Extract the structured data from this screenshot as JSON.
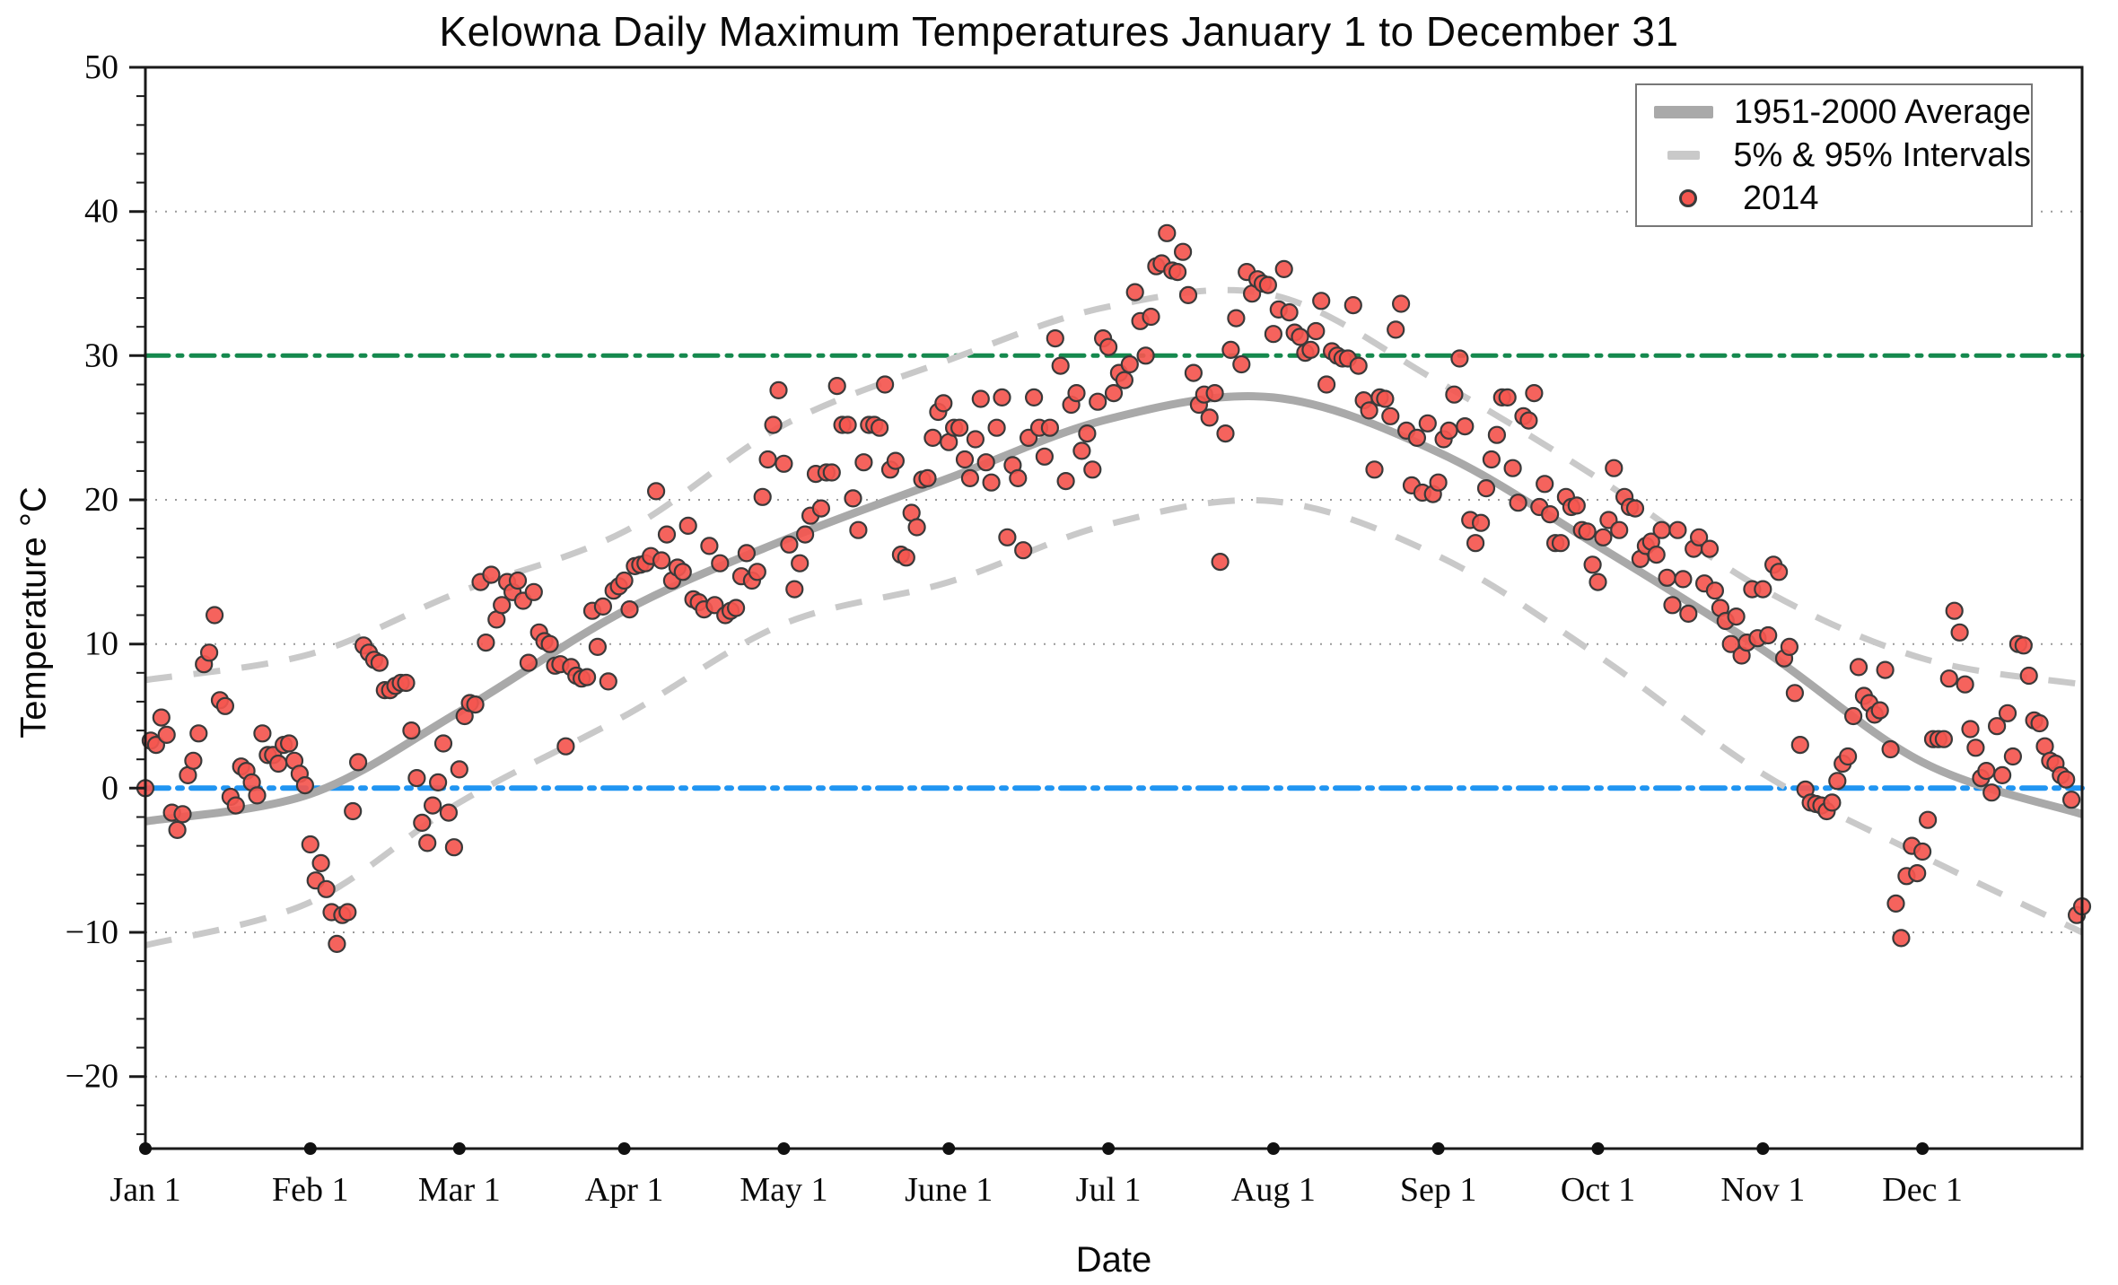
{
  "title": "Kelowna Daily Maximum Temperatures January 1 to December 31",
  "axes": {
    "xlabel": "Date",
    "ylabel": "Temperature °C",
    "ylim": [
      -25,
      50
    ],
    "yticks": [
      {
        "value": 50,
        "label": "50"
      },
      {
        "value": 40,
        "label": "40"
      },
      {
        "value": 30,
        "label": "30"
      },
      {
        "value": 20,
        "label": "20"
      },
      {
        "value": 10,
        "label": "10"
      },
      {
        "value": 0,
        "label": "0"
      },
      {
        "value": -10,
        "label": "−10"
      },
      {
        "value": -20,
        "label": "−20"
      }
    ],
    "minor_tick_step": 2,
    "xticks": [
      {
        "day": 0,
        "label": "Jan 1"
      },
      {
        "day": 31,
        "label": "Feb 1"
      },
      {
        "day": 59,
        "label": "Mar 1"
      },
      {
        "day": 90,
        "label": "Apr 1"
      },
      {
        "day": 120,
        "label": "May 1"
      },
      {
        "day": 151,
        "label": "June 1"
      },
      {
        "day": 181,
        "label": "Jul 1"
      },
      {
        "day": 212,
        "label": "Aug 1"
      },
      {
        "day": 243,
        "label": "Sep 1"
      },
      {
        "day": 273,
        "label": "Oct 1"
      },
      {
        "day": 304,
        "label": "Nov 1"
      },
      {
        "day": 334,
        "label": "Dec 1"
      }
    ],
    "grid_y": [
      40,
      20,
      10,
      -10,
      -20
    ]
  },
  "legend": {
    "items": [
      {
        "label": "1951-2000 Average",
        "swatch": "thick-gray-line"
      },
      {
        "label": "5% & 95% Intervals",
        "swatch": "gray-dash"
      },
      {
        "label": "2014",
        "swatch": "red-dot"
      }
    ]
  },
  "reference_lines": [
    {
      "name": "30-degree-threshold",
      "value": 30,
      "color": "#15894e",
      "style": "dash-dot"
    },
    {
      "name": "freezing-level",
      "value": 0,
      "color": "#2095f2",
      "style": "dash-dot"
    }
  ],
  "colors": {
    "scatter_fill": "#f4564f",
    "scatter_stroke": "#3a3a3a",
    "average_line": "#a9a9a9",
    "interval_line": "#c9c9c9",
    "grid": "#9a9a9a",
    "axis": "#1a1a1a",
    "green_line": "#15894e",
    "blue_line": "#2095f2"
  },
  "chart_data": {
    "type": "scatter",
    "title": "Kelowna Daily Maximum Temperatures January 1 to December 31",
    "xlabel": "Date",
    "ylabel": "Temperature °C",
    "x_unit": "day-of-year (Jan 1 = 0)",
    "ylim": [
      -25,
      50
    ],
    "month_start_days": [
      0,
      31,
      59,
      90,
      120,
      151,
      181,
      212,
      243,
      273,
      304,
      334
    ],
    "series": [
      {
        "name": "2014",
        "type": "scatter",
        "start_day": 0,
        "values": [
          0.0,
          3.3,
          3.0,
          4.9,
          3.7,
          -1.7,
          -2.9,
          -1.8,
          0.9,
          1.9,
          3.8,
          8.6,
          9.4,
          12.0,
          6.1,
          5.7,
          -0.6,
          -1.2,
          1.5,
          1.2,
          0.4,
          -0.5,
          3.8,
          2.3,
          2.3,
          1.7,
          3.0,
          3.1,
          1.9,
          1.0,
          0.2,
          -3.9,
          -6.4,
          -5.2,
          -7.0,
          -8.6,
          -10.8,
          -8.8,
          -8.6,
          -1.6,
          1.8,
          9.9,
          9.4,
          8.9,
          8.7,
          6.8,
          6.8,
          7.1,
          7.3,
          7.3,
          4.0,
          0.7,
          -2.4,
          -3.8,
          -1.2,
          0.4,
          3.1,
          -1.7,
          -4.1,
          1.3,
          5.0,
          5.9,
          5.8,
          14.3,
          10.1,
          14.8,
          11.7,
          12.7,
          14.3,
          13.6,
          14.4,
          13.0,
          8.7,
          13.6,
          10.8,
          10.2,
          10.0,
          8.5,
          8.6,
          2.9,
          8.4,
          7.8,
          7.6,
          7.7,
          12.3,
          9.8,
          12.6,
          7.4,
          13.7,
          14.0,
          14.4,
          12.4,
          15.4,
          15.5,
          15.6,
          16.1,
          20.6,
          15.8,
          17.6,
          14.4,
          15.3,
          15.0,
          18.2,
          13.1,
          12.9,
          12.4,
          16.8,
          12.7,
          15.6,
          12.0,
          12.3,
          12.5,
          14.7,
          16.3,
          14.4,
          15.0,
          20.2,
          22.8,
          25.2,
          27.6,
          22.5,
          16.9,
          13.8,
          15.6,
          17.6,
          18.9,
          21.8,
          19.4,
          21.9,
          21.9,
          27.9,
          25.2,
          25.2,
          20.1,
          17.9,
          22.6,
          25.2,
          25.2,
          25.0,
          28.0,
          22.1,
          22.7,
          16.2,
          16.0,
          19.1,
          18.1,
          21.4,
          21.5,
          24.3,
          26.1,
          26.7,
          24.0,
          25.0,
          25.0,
          22.8,
          21.5,
          24.2,
          27.0,
          22.6,
          21.2,
          25.0,
          27.1,
          17.4,
          22.4,
          21.5,
          16.5,
          24.3,
          27.1,
          25.0,
          23.0,
          25.0,
          31.2,
          29.3,
          21.3,
          26.6,
          27.4,
          23.4,
          24.6,
          22.1,
          26.8,
          31.2,
          30.6,
          27.4,
          28.8,
          28.3,
          29.4,
          34.4,
          32.4,
          30.0,
          32.7,
          36.2,
          36.4,
          38.5,
          35.9,
          35.8,
          37.2,
          34.2,
          28.8,
          26.6,
          27.3,
          25.7,
          27.4,
          15.7,
          24.6,
          30.4,
          32.6,
          29.4,
          35.8,
          34.3,
          35.3,
          35.0,
          34.9,
          31.5,
          33.2,
          36.0,
          33.0,
          31.6,
          31.3,
          30.2,
          30.4,
          31.7,
          33.8,
          28.0,
          30.3,
          30.0,
          29.8,
          29.8,
          33.5,
          29.3,
          26.9,
          26.2,
          22.1,
          27.1,
          27.0,
          25.8,
          31.8,
          33.6,
          24.8,
          21.0,
          24.3,
          20.5,
          25.3,
          20.4,
          21.2,
          24.2,
          24.8,
          27.3,
          29.8,
          25.1,
          18.6,
          17.0,
          18.4,
          20.8,
          22.8,
          24.5,
          27.1,
          27.1,
          22.2,
          19.8,
          25.8,
          25.5,
          27.4,
          19.5,
          21.1,
          19.0,
          17.0,
          17.0,
          20.2,
          19.5,
          19.6,
          17.9,
          17.8,
          15.5,
          14.3,
          17.4,
          18.6,
          22.2,
          17.9,
          20.2,
          19.5,
          19.4,
          15.9,
          16.8,
          17.1,
          16.2,
          17.9,
          14.6,
          12.7,
          17.9,
          14.5,
          12.1,
          16.6,
          17.4,
          14.2,
          16.6,
          13.7,
          12.5,
          11.6,
          10.0,
          11.9,
          9.2,
          10.1,
          13.8,
          10.4,
          13.8,
          10.6,
          15.5,
          15.0,
          9.0,
          9.8,
          6.6,
          3.0,
          -0.1,
          -1.0,
          -1.1,
          -1.2,
          -1.6,
          -1.0,
          0.5,
          1.7,
          2.2,
          5.0,
          8.4,
          6.4,
          5.9,
          5.1,
          5.4,
          8.2,
          2.7,
          -8.0,
          -10.4,
          -6.1,
          -4.0,
          -5.9,
          -4.4,
          -2.2,
          3.4,
          3.4,
          3.4,
          7.6,
          12.3,
          10.8,
          7.2,
          4.1,
          2.8,
          0.7,
          1.2,
          -0.3,
          4.3,
          0.9,
          5.2,
          2.2,
          10.0,
          9.9,
          7.8,
          4.7,
          4.5,
          2.9,
          1.9,
          1.7,
          0.9,
          0.6,
          -0.8,
          -8.8,
          -8.2
        ]
      },
      {
        "name": "1951-2000 Average",
        "type": "smooth-line",
        "anchor_days": [
          0,
          31,
          59,
          90,
          120,
          151,
          181,
          212,
          243,
          273,
          304,
          334,
          364
        ],
        "anchor_values": [
          -2.3,
          -0.4,
          5.3,
          12.3,
          17.2,
          21.5,
          25.6,
          27.1,
          23.3,
          16.8,
          9.6,
          1.8,
          -1.8
        ]
      },
      {
        "name": "95% Interval",
        "type": "smooth-dashed-line",
        "anchor_days": [
          0,
          31,
          59,
          90,
          120,
          151,
          181,
          212,
          243,
          273,
          304,
          334,
          364
        ],
        "anchor_values": [
          7.5,
          9.3,
          13.6,
          17.8,
          25.2,
          29.7,
          33.4,
          34.2,
          28.2,
          21.5,
          13.8,
          9.0,
          7.2
        ]
      },
      {
        "name": "5% Interval",
        "type": "smooth-dashed-line",
        "anchor_days": [
          0,
          31,
          59,
          90,
          120,
          151,
          181,
          212,
          243,
          273,
          304,
          334,
          364
        ],
        "anchor_values": [
          -10.9,
          -7.9,
          -1.0,
          5.0,
          11.4,
          14.3,
          18.3,
          19.9,
          16.1,
          9.2,
          1.0,
          -4.7,
          -10.0
        ]
      }
    ]
  }
}
